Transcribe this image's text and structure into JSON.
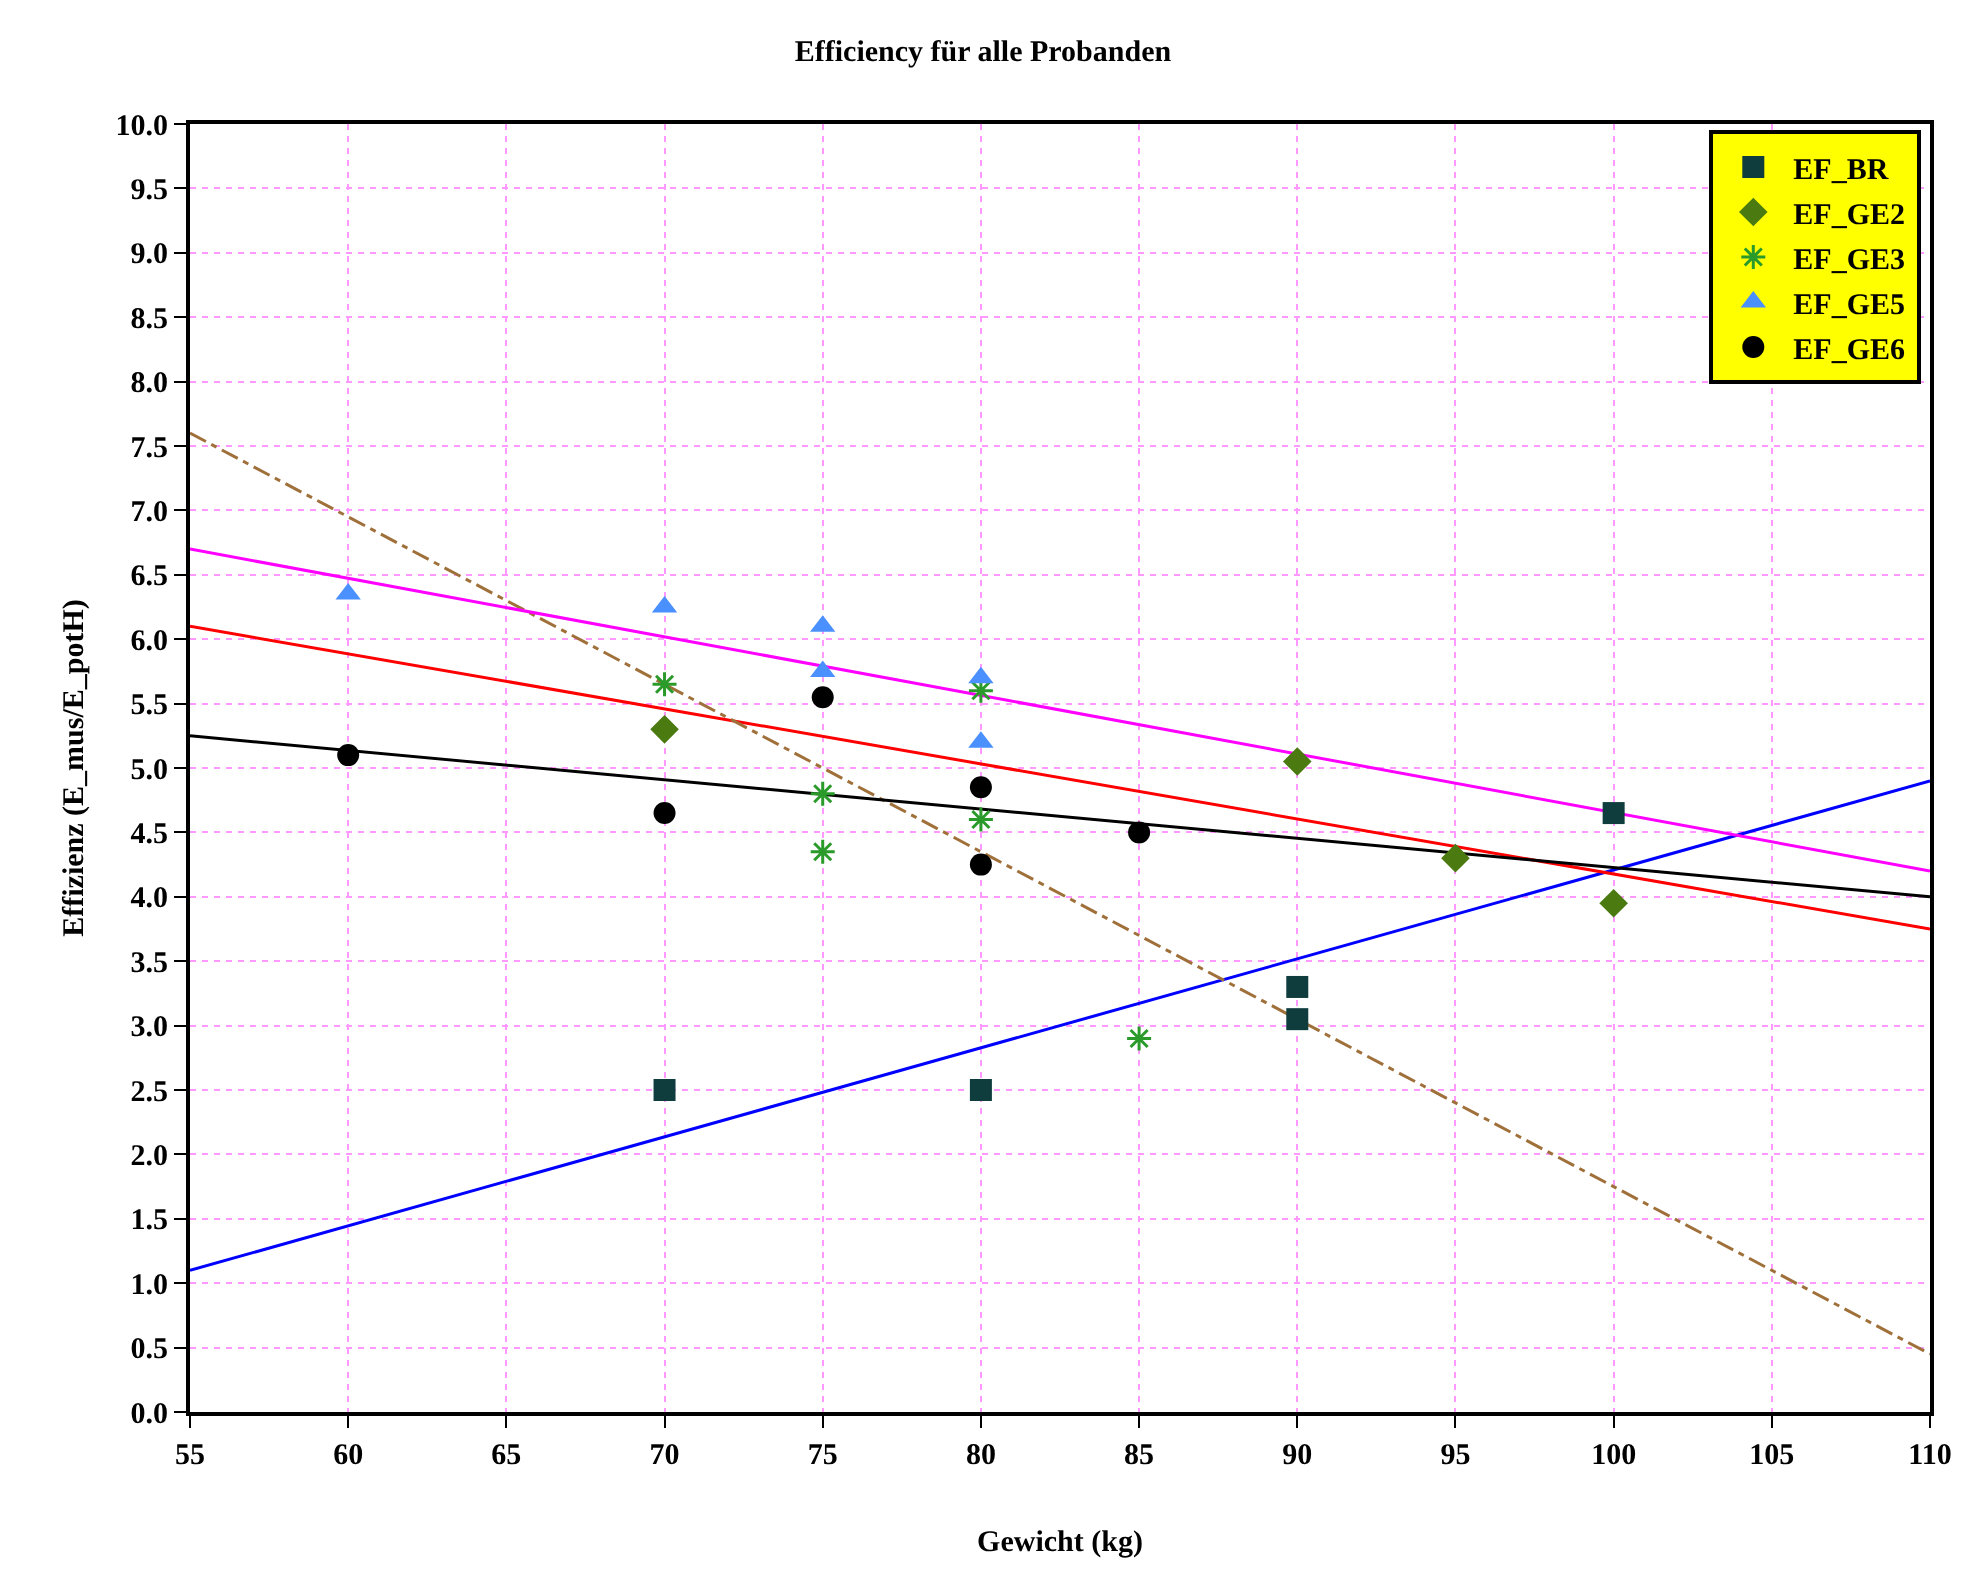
{
  "chart_data": {
    "type": "scatter",
    "title": "Efficiency für alle Probanden",
    "xlabel": "Gewicht (kg)",
    "ylabel": "Effizienz (E_mus/E_potH)",
    "xlim": [
      55,
      110
    ],
    "xticks": [
      55,
      60,
      65,
      70,
      75,
      80,
      85,
      90,
      95,
      100,
      105,
      110
    ],
    "ylim": [
      0,
      10
    ],
    "yticks": [
      {
        "value": 0,
        "label": "0.0"
      },
      {
        "value": 0.5,
        "label": "0.5"
      },
      {
        "value": 1,
        "label": "1.0"
      },
      {
        "value": 1.5,
        "label": "1.5"
      },
      {
        "value": 2,
        "label": "2.0"
      },
      {
        "value": 2.5,
        "label": "2.5"
      },
      {
        "value": 3,
        "label": "3.0"
      },
      {
        "value": 3.5,
        "label": "3.5"
      },
      {
        "value": 4,
        "label": "4.0"
      },
      {
        "value": 4.5,
        "label": "4.5"
      },
      {
        "value": 5,
        "label": "5.0"
      },
      {
        "value": 5.5,
        "label": "5.5"
      },
      {
        "value": 6,
        "label": "6.0"
      },
      {
        "value": 6.5,
        "label": "6.5"
      },
      {
        "value": 7,
        "label": "7.0"
      },
      {
        "value": 7.5,
        "label": "7.5"
      },
      {
        "value": 8,
        "label": "8.0"
      },
      {
        "value": 8.5,
        "label": "8.5"
      },
      {
        "value": 9,
        "label": "9.0"
      },
      {
        "value": 9.5,
        "label": "9.5"
      },
      {
        "value": 10,
        "label": "10.0"
      }
    ],
    "grid": true,
    "legend": "top right",
    "series": [
      {
        "type": "line",
        "color": "#0000ff",
        "x": [
          55,
          110
        ],
        "values": [
          1.1,
          4.9
        ],
        "marker": "none",
        "line_style": "solid"
      },
      {
        "type": "line",
        "color": "#ff0000",
        "x": [
          55,
          110
        ],
        "values": [
          6.1,
          3.75
        ],
        "marker": "none",
        "line_style": "solid"
      },
      {
        "type": "line",
        "color": "#a0703a",
        "x": [
          55,
          110
        ],
        "values": [
          7.6,
          0.45
        ],
        "marker": "none",
        "line_style": "dashed"
      },
      {
        "type": "line",
        "color": "#ff00ff",
        "x": [
          55,
          110
        ],
        "values": [
          6.7,
          4.2
        ],
        "marker": "none",
        "line_style": "solid"
      },
      {
        "type": "line",
        "color": "#000000",
        "x": [
          55,
          110
        ],
        "values": [
          5.25,
          4.0
        ],
        "marker": "none",
        "line_style": "solid"
      },
      {
        "name": "EF_BR",
        "color": "#0f3d3d",
        "marker": "square",
        "x": [
          70,
          80,
          90,
          90,
          100
        ],
        "values": [
          2.5,
          2.5,
          3.3,
          3.05,
          4.65
        ]
      },
      {
        "name": "EF_GE2",
        "color": "#4a7a10",
        "marker": "diamond",
        "x": [
          70,
          90,
          95,
          100
        ],
        "values": [
          5.3,
          5.05,
          4.3,
          3.95
        ]
      },
      {
        "name": "EF_GE3",
        "color": "#2a9a2a",
        "marker": "cross",
        "x": [
          70,
          75,
          75,
          80,
          80,
          85
        ],
        "values": [
          5.65,
          4.8,
          4.35,
          5.6,
          4.6,
          2.9
        ]
      },
      {
        "name": "EF_GE5",
        "color": "#4a90ff",
        "marker": "triangle",
        "x": [
          60,
          70,
          75,
          75,
          80,
          80
        ],
        "values": [
          6.35,
          6.25,
          6.1,
          5.75,
          5.7,
          5.2
        ]
      },
      {
        "name": "EF_GE6",
        "color": "#000000",
        "marker": "circle",
        "x": [
          60,
          70,
          75,
          80,
          80,
          85
        ],
        "values": [
          5.1,
          4.65,
          5.55,
          4.85,
          4.25,
          4.5
        ]
      }
    ]
  }
}
